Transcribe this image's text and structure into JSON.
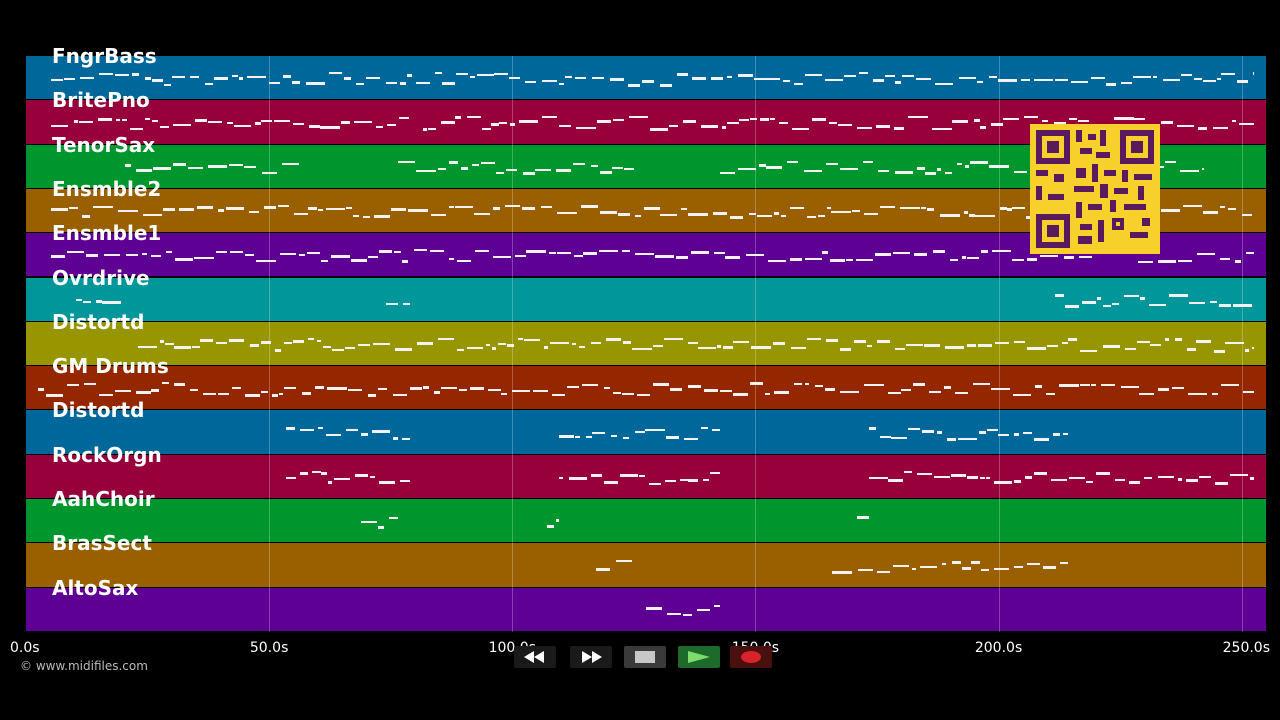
{
  "tracks": [
    {
      "name": "FngrBass",
      "color": "#00679a"
    },
    {
      "name": "BritePno",
      "color": "#97003b"
    },
    {
      "name": "TenorSax",
      "color": "#00962e"
    },
    {
      "name": "Ensmble2",
      "color": "#9a6000"
    },
    {
      "name": "Ensmble1",
      "color": "#5e0094"
    },
    {
      "name": "Ovrdrive",
      "color": "#00969a"
    },
    {
      "name": "Distortd",
      "color": "#989600"
    },
    {
      "name": "GM Drums",
      "color": "#942600"
    },
    {
      "name": "Distortd",
      "color": "#00679a"
    },
    {
      "name": "RockOrgn",
      "color": "#97003b"
    },
    {
      "name": "AahChoir",
      "color": "#00962e"
    },
    {
      "name": "BrasSect",
      "color": "#9a6000"
    },
    {
      "name": "AltoSax",
      "color": "#5e0094"
    }
  ],
  "timeline": {
    "ticks": [
      "0.0s",
      "50.0s",
      "100.0s",
      "150.0s",
      "200.0s",
      "250.0s"
    ],
    "tick_values": [
      0,
      50,
      100,
      150,
      200,
      250
    ],
    "max_seconds": 255
  },
  "footer": {
    "copyright": "© www.midifiles.com"
  },
  "controls": {
    "rewind_icon": "rewind-icon",
    "forward_icon": "fast-forward-icon",
    "stop_icon": "stop-icon",
    "play_icon": "play-icon",
    "record_icon": "record-icon"
  }
}
